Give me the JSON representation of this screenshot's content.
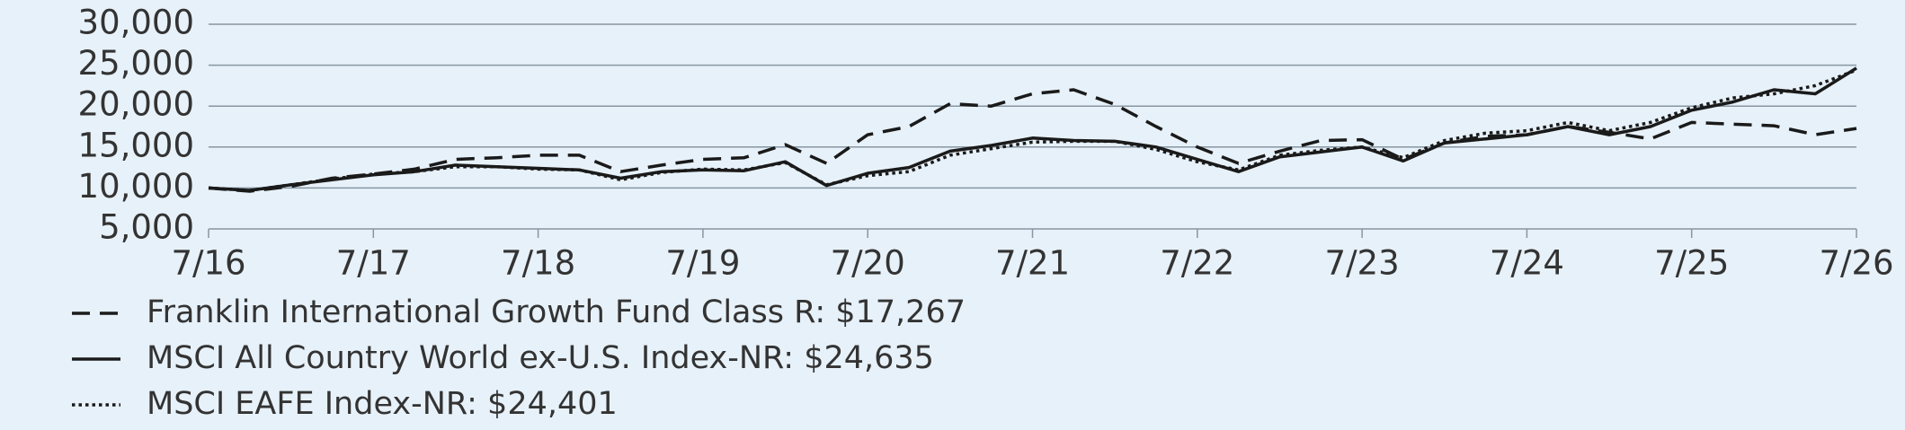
{
  "chart_data": {
    "type": "line",
    "categories": [
      "7/16",
      null,
      null,
      null,
      "7/17",
      null,
      null,
      null,
      "7/18",
      null,
      null,
      null,
      "7/19",
      null,
      null,
      null,
      "7/20",
      null,
      null,
      null,
      "7/21",
      null,
      null,
      null,
      "7/22",
      null,
      null,
      null,
      "7/23",
      null,
      null,
      null,
      "7/24",
      null,
      null,
      null,
      "7/25",
      null,
      null,
      null,
      "7/26"
    ],
    "series": [
      {
        "name": "Franklin International Growth Fund Class R: $17,267",
        "color": "#1a1a1a",
        "dash": "dashed",
        "values": [
          10000,
          9600,
          10200,
          11200,
          11700,
          12300,
          13500,
          13700,
          14000,
          14000,
          12000,
          12800,
          13500,
          13700,
          15300,
          13000,
          16500,
          17500,
          20300,
          20000,
          21500,
          22000,
          20200,
          17500,
          15000,
          13000,
          14500,
          15800,
          15900,
          13500,
          15500,
          16300,
          16500,
          17500,
          16800,
          16000,
          18000,
          17800,
          17600,
          16500,
          17267
        ]
      },
      {
        "name": "MSCI All Country World ex-U.S. Index-NR: $24,635",
        "color": "#1a1a1a",
        "dash": "solid",
        "values": [
          10000,
          9700,
          10400,
          11000,
          11600,
          12000,
          12800,
          12600,
          12400,
          12200,
          11200,
          12000,
          12200,
          12100,
          13200,
          10300,
          11800,
          12500,
          14500,
          15200,
          16100,
          15800,
          15700,
          15000,
          13500,
          12000,
          13800,
          14400,
          15000,
          13300,
          15500,
          16000,
          16500,
          17500,
          16500,
          17500,
          19500,
          20500,
          22000,
          21500,
          24635
        ]
      },
      {
        "name": "MSCI EAFE Index-NR: $24,401",
        "color": "#1a1a1a",
        "dash": "dotted",
        "values": [
          10000,
          9700,
          10400,
          11100,
          11700,
          12000,
          12600,
          12600,
          12300,
          12200,
          11000,
          11900,
          12300,
          12200,
          13100,
          10400,
          11500,
          12000,
          14000,
          14800,
          15600,
          15700,
          15700,
          14700,
          13200,
          12200,
          14000,
          14600,
          15000,
          13700,
          15800,
          16700,
          17000,
          18000,
          17000,
          18000,
          19800,
          21000,
          21500,
          22500,
          24401
        ]
      }
    ],
    "ylim": [
      5000,
      30000
    ],
    "yticks": [
      {
        "value": 5000,
        "label": "5,000"
      },
      {
        "value": 10000,
        "label": "10,000"
      },
      {
        "value": 15000,
        "label": "15,000"
      },
      {
        "value": 20000,
        "label": "20,000"
      },
      {
        "value": 25000,
        "label": "25,000"
      },
      {
        "value": 30000,
        "label": "30,000"
      }
    ],
    "grid": true,
    "legend": "bottom-left"
  }
}
